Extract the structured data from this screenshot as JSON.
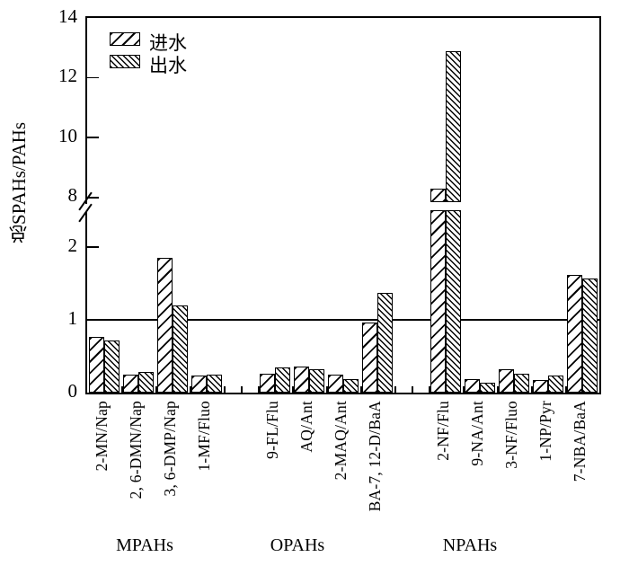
{
  "figure": {
    "background": "#ffffff",
    "ink": "#000000"
  },
  "y_axis": {
    "title": "总SPAHs/PAHs",
    "tick_values": [
      14,
      12,
      10,
      8,
      2,
      1,
      0
    ],
    "inner_tick_values": [
      12,
      10,
      8,
      2
    ]
  },
  "legend": {
    "items": [
      {
        "label": "进水",
        "pattern": "diagonal-up-sparse",
        "series": "in"
      },
      {
        "label": "出水",
        "pattern": "diagonal-down-dense",
        "series": "out"
      }
    ]
  },
  "chart_data": {
    "type": "bar",
    "title": "",
    "ylabel": "总SPAHs/PAHs",
    "y_ticks": [
      0,
      1,
      2,
      8,
      10,
      12,
      14
    ],
    "axis_break": {
      "between": [
        2,
        8
      ]
    },
    "reference_line_y": 1,
    "legend_position": "top-left",
    "grid": false,
    "series_names": [
      "进水",
      "出水"
    ],
    "groups": [
      {
        "label": "MPAHs",
        "categories": [
          "2-MN/Nap",
          "2, 6-DMN/Nap",
          "3, 6-DMP/Nap",
          "1-MF/Fluo"
        ],
        "series": [
          {
            "name": "进水",
            "values": [
              0.77,
              0.25,
              1.85,
              0.23
            ]
          },
          {
            "name": "出水",
            "values": [
              0.72,
              0.28,
              1.2,
              0.25
            ]
          }
        ]
      },
      {
        "label": "OPAHs",
        "categories": [
          "9-FL/Flu",
          "AQ/Ant",
          "2-MAQ/Ant",
          "BA-7, 12-D/BaA"
        ],
        "series": [
          {
            "name": "进水",
            "values": [
              0.26,
              0.36,
              0.25,
              0.96
            ]
          },
          {
            "name": "出水",
            "values": [
              0.35,
              0.32,
              0.19,
              1.37
            ]
          }
        ]
      },
      {
        "label": "NPAHs",
        "categories": [
          "2-NF/Flu",
          "9-NA/Ant",
          "3-NF/Fluo",
          "1-NP/Pyr",
          "7-NBA/BaA"
        ],
        "series": [
          {
            "name": "进水",
            "values": [
              8.3,
              0.19,
              0.32,
              0.17,
              1.62
            ]
          },
          {
            "name": "出水",
            "values": [
              12.9,
              0.13,
              0.26,
              0.23,
              1.57
            ]
          }
        ]
      }
    ]
  }
}
